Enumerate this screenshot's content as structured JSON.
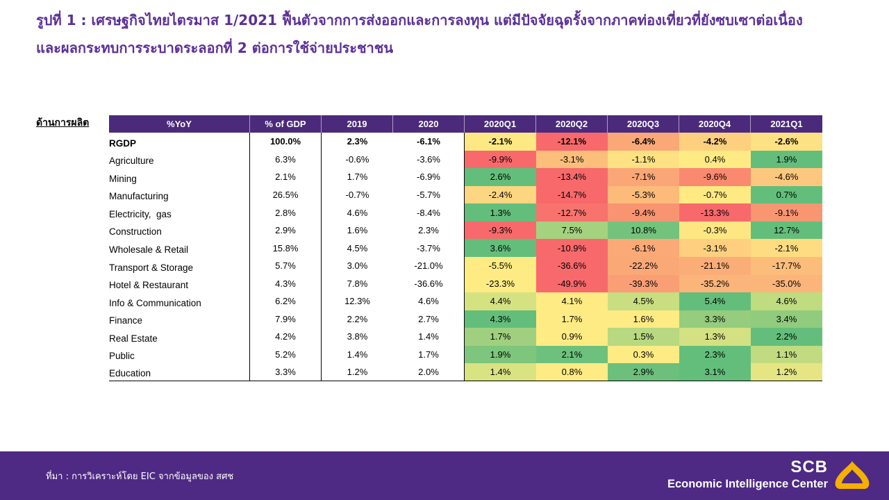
{
  "slide": {
    "title_line1": "รูปที่ 1 : เศรษฐกิจไทยไตรมาส 1/2021 ฟื้นตัวจากการส่งออกและการลงทุน แต่มีปัจจัยฉุดรั้งจากภาคท่องเที่ยวที่ยังซบเซาต่อเนื่อง",
    "title_line2": "และผลกระทบการระบาดระลอกที่ 2 ต่อการใช้จ่ายประชาชน",
    "section_label": "ด้านการผลิต"
  },
  "colors": {
    "title": "#5b2f98",
    "header_bg": "#4b2a7b",
    "footer_bg": "#4e2a84",
    "logo": "#f5b000",
    "scale_low": "#F8696B",
    "scale_mid": "#FFEB84",
    "scale_high": "#63BE7B"
  },
  "chart_data": {
    "type": "table",
    "columns": [
      "%YoY",
      "% of GDP",
      "2019",
      "2020",
      "2020Q1",
      "2020Q2",
      "2020Q3",
      "2020Q4",
      "2021Q1"
    ],
    "rows": [
      {
        "label": "RGDP",
        "bold": true,
        "values": [
          "100.0%",
          "2.3%",
          "-6.1%",
          "-2.1%",
          "-12.1%",
          "-6.4%",
          "-4.2%",
          "-2.6%"
        ],
        "fills": [
          "#FEE883",
          "#F8696B",
          "#FBA877",
          "#FDD07F",
          "#FEE182"
        ]
      },
      {
        "label": "Agriculture",
        "bold": false,
        "values": [
          "6.3%",
          "-0.6%",
          "-3.6%",
          "-9.9%",
          "-3.1%",
          "-1.1%",
          "0.4%",
          "1.9%"
        ],
        "fills": [
          "#F8696B",
          "#FCBE7B",
          "#FEE182",
          "#FFEB84",
          "#63BE7B"
        ]
      },
      {
        "label": "Mining",
        "bold": false,
        "values": [
          "2.1%",
          "1.7%",
          "-6.9%",
          "2.6%",
          "-13.4%",
          "-7.1%",
          "-9.6%",
          "-4.6%"
        ],
        "fills": [
          "#63BE7B",
          "#F8696B",
          "#FBA676",
          "#F98A70",
          "#FDC87D"
        ]
      },
      {
        "label": "Manufacturing",
        "bold": false,
        "values": [
          "26.5%",
          "-0.7%",
          "-5.7%",
          "-2.4%",
          "-14.7%",
          "-5.3%",
          "-0.7%",
          "0.7%"
        ],
        "fills": [
          "#FDD681",
          "#F8696B",
          "#FCBB7A",
          "#FFE983",
          "#63BE7B"
        ]
      },
      {
        "label": "Electricity,  gas",
        "bold": false,
        "values": [
          "2.8%",
          "4.6%",
          "-8.4%",
          "1.3%",
          "-12.7%",
          "-9.4%",
          "-13.3%",
          "-9.1%"
        ],
        "fills": [
          "#63BE7B",
          "#F8736D",
          "#F99471",
          "#F8696B",
          "#F99672"
        ]
      },
      {
        "label": "Construction",
        "bold": false,
        "values": [
          "2.9%",
          "1.6%",
          "2.3%",
          "-9.3%",
          "7.5%",
          "10.8%",
          "-0.3%",
          "12.7%"
        ],
        "fills": [
          "#F8696B",
          "#A4D27F",
          "#74C37C",
          "#FEE783",
          "#63BE7B"
        ]
      },
      {
        "label": "Wholesale & Retail",
        "bold": false,
        "values": [
          "15.8%",
          "4.5%",
          "-3.7%",
          "3.6%",
          "-10.9%",
          "-6.1%",
          "-3.1%",
          "-2.1%"
        ],
        "fills": [
          "#63BE7B",
          "#F8696B",
          "#FBA977",
          "#FDCF7F",
          "#FEDC81"
        ]
      },
      {
        "label": "Transport & Storage",
        "bold": false,
        "values": [
          "5.7%",
          "3.0%",
          "-21.0%",
          "-5.5%",
          "-36.6%",
          "-22.2%",
          "-21.1%",
          "-17.7%"
        ],
        "fills": [
          "#FFEB84",
          "#F8696B",
          "#FBA877",
          "#FBAD78",
          "#FCBD7B"
        ]
      },
      {
        "label": "Hotel & Restaurant",
        "bold": false,
        "values": [
          "4.3%",
          "7.8%",
          "-36.6%",
          "-23.3%",
          "-49.9%",
          "-39.3%",
          "-35.2%",
          "-35.0%"
        ],
        "fills": [
          "#FFEB84",
          "#F8696B",
          "#FA9F75",
          "#FBB479",
          "#FBB57A"
        ]
      },
      {
        "label": "Info & Communication",
        "bold": false,
        "values": [
          "6.2%",
          "12.3%",
          "4.6%",
          "4.4%",
          "4.1%",
          "4.5%",
          "5.4%",
          "4.6%"
        ],
        "fills": [
          "#D5E282",
          "#FFEB84",
          "#C8DE81",
          "#63BE7B",
          "#BFDC80"
        ]
      },
      {
        "label": "Finance",
        "bold": false,
        "values": [
          "7.9%",
          "2.2%",
          "2.7%",
          "4.3%",
          "1.7%",
          "1.6%",
          "3.3%",
          "3.4%"
        ],
        "fills": [
          "#63BE7B",
          "#FFEB84",
          "#FFEB84",
          "#95CC7E",
          "#91CB7E"
        ]
      },
      {
        "label": "Real Estate",
        "bold": false,
        "values": [
          "4.2%",
          "3.8%",
          "1.4%",
          "1.7%",
          "0.9%",
          "1.5%",
          "1.3%",
          "2.2%"
        ],
        "fills": [
          "#A0D07F",
          "#FFEB84",
          "#B8D881",
          "#D3E182",
          "#63BE7B"
        ]
      },
      {
        "label": "Public",
        "bold": false,
        "values": [
          "5.2%",
          "1.4%",
          "1.7%",
          "1.9%",
          "2.1%",
          "0.3%",
          "2.3%",
          "1.1%"
        ],
        "fills": [
          "#7EC57D",
          "#6EC17C",
          "#FFEB84",
          "#63BE7B",
          "#C1DB81"
        ]
      },
      {
        "label": "Education",
        "bold": false,
        "values": [
          "3.3%",
          "1.2%",
          "2.0%",
          "1.4%",
          "0.8%",
          "2.9%",
          "3.1%",
          "1.2%"
        ],
        "fills": [
          "#D9E382",
          "#FFEB84",
          "#6CC07C",
          "#63BE7B",
          "#E5E683"
        ]
      }
    ]
  },
  "footer": {
    "source": "ที่มา : การวิเคราะห์โดย EIC จากข้อมูลของ สศช",
    "brand": "SCB",
    "brand_sub": "Economic Intelligence Center"
  }
}
